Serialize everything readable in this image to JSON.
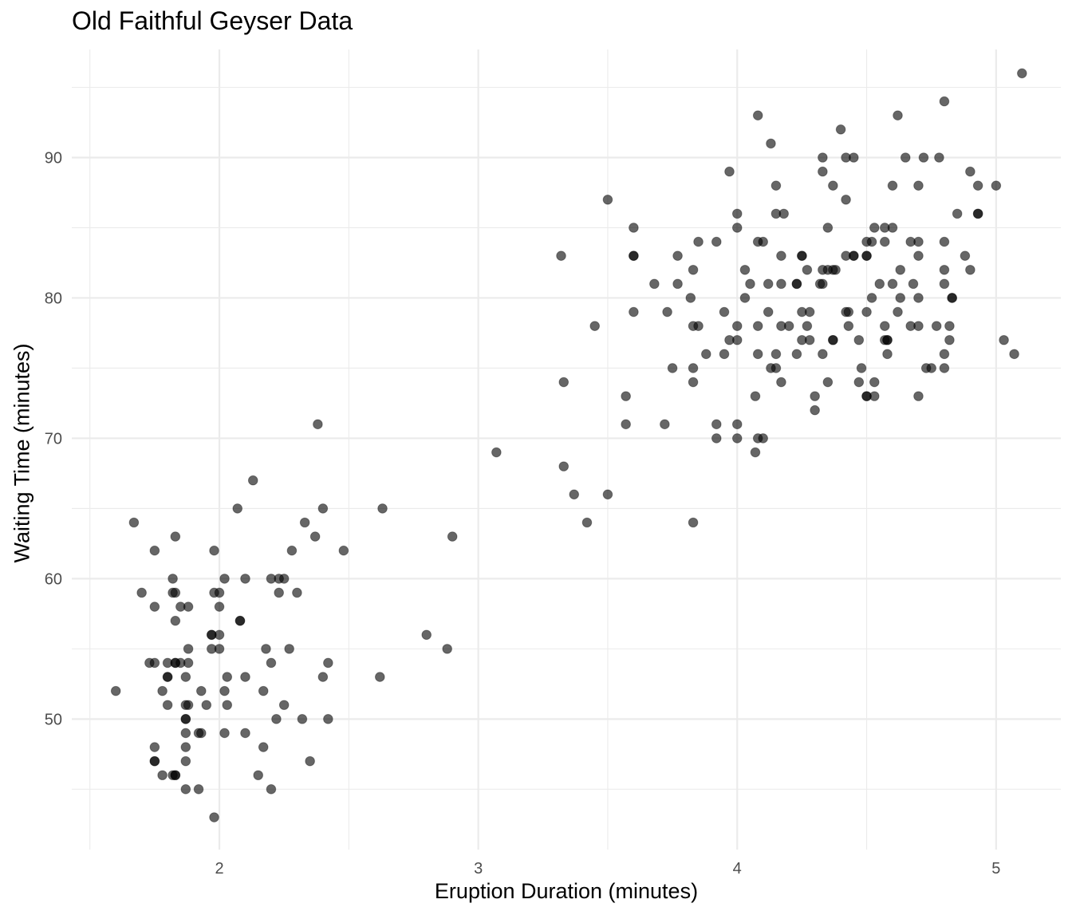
{
  "chart_data": {
    "type": "scatter",
    "title": "Old Faithful Geyser Data",
    "xlabel": "Eruption Duration (minutes)",
    "ylabel": "Waiting Time (minutes)",
    "xlim": [
      1.43,
      5.25
    ],
    "ylim": [
      40.7,
      97.7
    ],
    "x_ticks": [
      2,
      3,
      4,
      5
    ],
    "y_ticks": [
      50,
      60,
      70,
      80,
      90
    ],
    "grid": true,
    "legend": "none",
    "point_color": "#000000",
    "point_alpha": 0.6,
    "points": [
      [
        1.6,
        52
      ],
      [
        1.67,
        64
      ],
      [
        1.7,
        59
      ],
      [
        1.73,
        54
      ],
      [
        1.75,
        54
      ],
      [
        1.75,
        62
      ],
      [
        1.75,
        58
      ],
      [
        1.75,
        48
      ],
      [
        1.75,
        47
      ],
      [
        1.75,
        47
      ],
      [
        1.78,
        46
      ],
      [
        1.78,
        52
      ],
      [
        1.8,
        54
      ],
      [
        1.8,
        53
      ],
      [
        1.8,
        53
      ],
      [
        1.8,
        51
      ],
      [
        1.82,
        59
      ],
      [
        1.82,
        60
      ],
      [
        1.82,
        46
      ],
      [
        1.83,
        63
      ],
      [
        1.83,
        57
      ],
      [
        1.83,
        59
      ],
      [
        1.83,
        54
      ],
      [
        1.83,
        54
      ],
      [
        1.83,
        46
      ],
      [
        1.83,
        46
      ],
      [
        1.85,
        58
      ],
      [
        1.85,
        54
      ],
      [
        1.87,
        53
      ],
      [
        1.87,
        51
      ],
      [
        1.87,
        50
      ],
      [
        1.87,
        50
      ],
      [
        1.87,
        49
      ],
      [
        1.87,
        48
      ],
      [
        1.87,
        47
      ],
      [
        1.87,
        45
      ],
      [
        1.88,
        55
      ],
      [
        1.88,
        54
      ],
      [
        1.88,
        51
      ],
      [
        1.88,
        58
      ],
      [
        1.92,
        49
      ],
      [
        1.92,
        45
      ],
      [
        1.93,
        52
      ],
      [
        1.93,
        49
      ],
      [
        1.95,
        51
      ],
      [
        1.97,
        56
      ],
      [
        1.97,
        56
      ],
      [
        1.97,
        55
      ],
      [
        1.98,
        62
      ],
      [
        1.98,
        59
      ],
      [
        1.98,
        43
      ],
      [
        2.0,
        59
      ],
      [
        2.0,
        56
      ],
      [
        2.0,
        55
      ],
      [
        2.0,
        58
      ],
      [
        2.02,
        60
      ],
      [
        2.02,
        52
      ],
      [
        2.02,
        49
      ],
      [
        2.03,
        53
      ],
      [
        2.03,
        51
      ],
      [
        2.07,
        65
      ],
      [
        2.08,
        57
      ],
      [
        2.08,
        57
      ],
      [
        2.1,
        60
      ],
      [
        2.1,
        53
      ],
      [
        2.1,
        49
      ],
      [
        2.13,
        67
      ],
      [
        2.15,
        46
      ],
      [
        2.17,
        52
      ],
      [
        2.17,
        48
      ],
      [
        2.18,
        55
      ],
      [
        2.2,
        60
      ],
      [
        2.2,
        54
      ],
      [
        2.2,
        45
      ],
      [
        2.22,
        50
      ],
      [
        2.23,
        59
      ],
      [
        2.23,
        60
      ],
      [
        2.25,
        60
      ],
      [
        2.25,
        51
      ],
      [
        2.27,
        55
      ],
      [
        2.28,
        62
      ],
      [
        2.3,
        59
      ],
      [
        2.32,
        50
      ],
      [
        2.33,
        64
      ],
      [
        2.35,
        47
      ],
      [
        2.37,
        63
      ],
      [
        2.38,
        71
      ],
      [
        2.4,
        65
      ],
      [
        2.4,
        53
      ],
      [
        2.42,
        54
      ],
      [
        2.42,
        50
      ],
      [
        2.48,
        62
      ],
      [
        2.62,
        53
      ],
      [
        2.63,
        65
      ],
      [
        2.8,
        56
      ],
      [
        2.88,
        55
      ],
      [
        2.9,
        63
      ],
      [
        3.07,
        69
      ],
      [
        3.32,
        83
      ],
      [
        3.33,
        74
      ],
      [
        3.33,
        68
      ],
      [
        3.37,
        66
      ],
      [
        3.42,
        64
      ],
      [
        3.45,
        78
      ],
      [
        3.5,
        87
      ],
      [
        3.5,
        66
      ],
      [
        3.57,
        73
      ],
      [
        3.57,
        71
      ],
      [
        3.6,
        85
      ],
      [
        3.6,
        83
      ],
      [
        3.6,
        83
      ],
      [
        3.6,
        79
      ],
      [
        3.68,
        81
      ],
      [
        3.72,
        71
      ],
      [
        3.73,
        79
      ],
      [
        3.75,
        75
      ],
      [
        3.77,
        83
      ],
      [
        3.77,
        81
      ],
      [
        3.82,
        80
      ],
      [
        3.83,
        82
      ],
      [
        3.83,
        78
      ],
      [
        3.83,
        75
      ],
      [
        3.83,
        74
      ],
      [
        3.83,
        64
      ],
      [
        3.85,
        84
      ],
      [
        3.85,
        78
      ],
      [
        3.88,
        76
      ],
      [
        3.92,
        84
      ],
      [
        3.92,
        71
      ],
      [
        3.92,
        70
      ],
      [
        3.95,
        79
      ],
      [
        3.95,
        76
      ],
      [
        3.97,
        89
      ],
      [
        3.97,
        77
      ],
      [
        4.0,
        86
      ],
      [
        4.0,
        85
      ],
      [
        4.0,
        78
      ],
      [
        4.0,
        77
      ],
      [
        4.0,
        71
      ],
      [
        4.0,
        70
      ],
      [
        4.03,
        82
      ],
      [
        4.03,
        80
      ],
      [
        4.05,
        81
      ],
      [
        4.07,
        73
      ],
      [
        4.07,
        69
      ],
      [
        4.08,
        93
      ],
      [
        4.08,
        84
      ],
      [
        4.08,
        78
      ],
      [
        4.08,
        76
      ],
      [
        4.08,
        70
      ],
      [
        4.1,
        84
      ],
      [
        4.1,
        70
      ],
      [
        4.12,
        81
      ],
      [
        4.12,
        79
      ],
      [
        4.13,
        91
      ],
      [
        4.13,
        75
      ],
      [
        4.15,
        88
      ],
      [
        4.15,
        86
      ],
      [
        4.15,
        76
      ],
      [
        4.15,
        75
      ],
      [
        4.17,
        83
      ],
      [
        4.17,
        81
      ],
      [
        4.17,
        78
      ],
      [
        4.17,
        74
      ],
      [
        4.18,
        86
      ],
      [
        4.2,
        78
      ],
      [
        4.23,
        81
      ],
      [
        4.23,
        81
      ],
      [
        4.23,
        76
      ],
      [
        4.25,
        83
      ],
      [
        4.25,
        83
      ],
      [
        4.25,
        79
      ],
      [
        4.25,
        77
      ],
      [
        4.27,
        82
      ],
      [
        4.27,
        78
      ],
      [
        4.28,
        79
      ],
      [
        4.28,
        77
      ],
      [
        4.3,
        73
      ],
      [
        4.3,
        72
      ],
      [
        4.32,
        81
      ],
      [
        4.33,
        90
      ],
      [
        4.33,
        89
      ],
      [
        4.33,
        81
      ],
      [
        4.33,
        76
      ],
      [
        4.33,
        82
      ],
      [
        4.35,
        82
      ],
      [
        4.35,
        85
      ],
      [
        4.35,
        74
      ],
      [
        4.37,
        88
      ],
      [
        4.37,
        82
      ],
      [
        4.37,
        77
      ],
      [
        4.37,
        77
      ],
      [
        4.38,
        82
      ],
      [
        4.4,
        92
      ],
      [
        4.42,
        90
      ],
      [
        4.42,
        87
      ],
      [
        4.42,
        83
      ],
      [
        4.42,
        79
      ],
      [
        4.43,
        79
      ],
      [
        4.43,
        78
      ],
      [
        4.45,
        90
      ],
      [
        4.45,
        83
      ],
      [
        4.45,
        83
      ],
      [
        4.47,
        77
      ],
      [
        4.47,
        74
      ],
      [
        4.48,
        75
      ],
      [
        4.5,
        84
      ],
      [
        4.5,
        83
      ],
      [
        4.5,
        83
      ],
      [
        4.5,
        79
      ],
      [
        4.5,
        73
      ],
      [
        4.5,
        73
      ],
      [
        4.52,
        84
      ],
      [
        4.52,
        80
      ],
      [
        4.53,
        85
      ],
      [
        4.53,
        74
      ],
      [
        4.53,
        73
      ],
      [
        4.55,
        81
      ],
      [
        4.57,
        85
      ],
      [
        4.57,
        84
      ],
      [
        4.57,
        78
      ],
      [
        4.57,
        77
      ],
      [
        4.58,
        77
      ],
      [
        4.58,
        77
      ],
      [
        4.58,
        76
      ],
      [
        4.6,
        85
      ],
      [
        4.6,
        88
      ],
      [
        4.6,
        81
      ],
      [
        4.62,
        93
      ],
      [
        4.62,
        79
      ],
      [
        4.63,
        82
      ],
      [
        4.63,
        80
      ],
      [
        4.65,
        90
      ],
      [
        4.67,
        84
      ],
      [
        4.67,
        78
      ],
      [
        4.68,
        81
      ],
      [
        4.7,
        88
      ],
      [
        4.7,
        84
      ],
      [
        4.7,
        83
      ],
      [
        4.7,
        80
      ],
      [
        4.7,
        78
      ],
      [
        4.7,
        73
      ],
      [
        4.72,
        90
      ],
      [
        4.73,
        75
      ],
      [
        4.75,
        75
      ],
      [
        4.77,
        78
      ],
      [
        4.78,
        90
      ],
      [
        4.8,
        94
      ],
      [
        4.8,
        84
      ],
      [
        4.8,
        82
      ],
      [
        4.8,
        81
      ],
      [
        4.8,
        76
      ],
      [
        4.8,
        75
      ],
      [
        4.82,
        78
      ],
      [
        4.82,
        77
      ],
      [
        4.83,
        80
      ],
      [
        4.83,
        80
      ],
      [
        4.85,
        86
      ],
      [
        4.88,
        83
      ],
      [
        4.9,
        89
      ],
      [
        4.9,
        82
      ],
      [
        4.93,
        88
      ],
      [
        4.93,
        86
      ],
      [
        4.93,
        86
      ],
      [
        5.0,
        88
      ],
      [
        5.03,
        77
      ],
      [
        5.07,
        76
      ],
      [
        5.1,
        96
      ]
    ]
  }
}
